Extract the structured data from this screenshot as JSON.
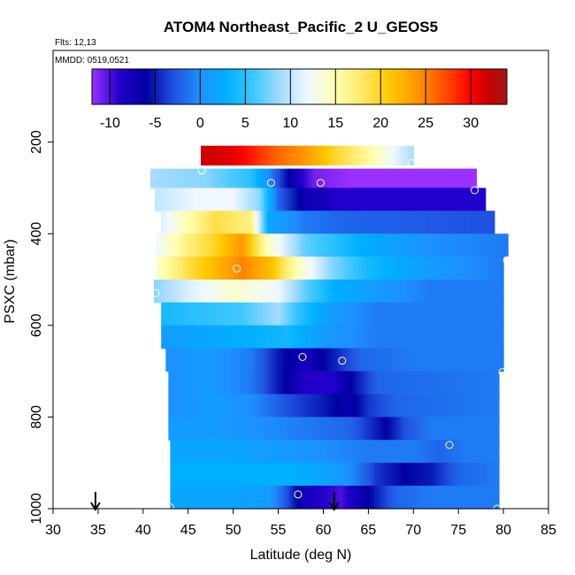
{
  "chart_data": {
    "type": "heatmap",
    "title": "ATOM4 Northeast_Pacific_2 U_GEOS5",
    "notes": [
      "Flts: 12,13",
      "MMDD: 0519,0521"
    ],
    "xlabel": "Latitude (deg N)",
    "ylabel": "PSXC (mbar)",
    "xlim": [
      30,
      85
    ],
    "ylim": [
      1000,
      0
    ],
    "xticks": [
      30,
      35,
      40,
      45,
      50,
      55,
      60,
      65,
      70,
      75,
      80,
      85
    ],
    "yticks": [
      200,
      400,
      600,
      800,
      1000
    ],
    "colorbar": {
      "range": [
        -12,
        34
      ],
      "ticks": [
        -10,
        -5,
        0,
        5,
        10,
        15,
        20,
        25,
        30
      ],
      "stops": [
        [
          -12,
          "#9b30ff"
        ],
        [
          -9,
          "#2200cc"
        ],
        [
          -6,
          "#0000a0"
        ],
        [
          -3,
          "#2050e0"
        ],
        [
          0,
          "#1e90ff"
        ],
        [
          3,
          "#00b0ff"
        ],
        [
          6,
          "#40c8ff"
        ],
        [
          9,
          "#a8dcff"
        ],
        [
          12,
          "#f0f8ff"
        ],
        [
          15,
          "#ffffb0"
        ],
        [
          18,
          "#ffe866"
        ],
        [
          21,
          "#ffc800"
        ],
        [
          24,
          "#ff9800"
        ],
        [
          27,
          "#ff5000"
        ],
        [
          30,
          "#ff0000"
        ],
        [
          32,
          "#c80000"
        ],
        [
          34,
          "#a01818"
        ]
      ]
    },
    "arrows": [
      34.7,
      61.2
    ],
    "bands": [
      {
        "p0": 250,
        "p1": 208,
        "x0": 46.4,
        "x1": 70.0,
        "v": [
          [
            46.4,
            32
          ],
          [
            50,
            31
          ],
          [
            55,
            26
          ],
          [
            58,
            24
          ],
          [
            61,
            20
          ],
          [
            64,
            17
          ],
          [
            67,
            13
          ],
          [
            70,
            9
          ]
        ]
      },
      {
        "p0": 300,
        "p1": 258,
        "x0": 40.8,
        "x1": 77.0,
        "v": [
          [
            40.8,
            9
          ],
          [
            47,
            8
          ],
          [
            52,
            5
          ],
          [
            55,
            -3
          ],
          [
            57,
            -8
          ],
          [
            59,
            -11
          ],
          [
            63,
            -12
          ],
          [
            77,
            -12
          ]
        ]
      },
      {
        "p0": 350,
        "p1": 300,
        "x0": 41.3,
        "x1": 78.0,
        "v": [
          [
            41.3,
            10
          ],
          [
            46,
            12
          ],
          [
            50,
            12
          ],
          [
            53,
            8
          ],
          [
            55,
            -2
          ],
          [
            58,
            -7
          ],
          [
            62,
            -9
          ],
          [
            78,
            -9
          ]
        ]
      },
      {
        "p0": 400,
        "p1": 350,
        "x0": 42.0,
        "x1": 79.0,
        "v": [
          [
            42,
            11
          ],
          [
            45,
            15
          ],
          [
            48,
            19
          ],
          [
            52,
            17
          ],
          [
            54,
            2
          ],
          [
            58,
            -1
          ],
          [
            62,
            -2
          ],
          [
            79,
            -3
          ]
        ]
      },
      {
        "p0": 450,
        "p1": 400,
        "x0": 41.5,
        "x1": 80.5,
        "v": [
          [
            41.5,
            12
          ],
          [
            45,
            17
          ],
          [
            48,
            20
          ],
          [
            51,
            24
          ],
          [
            54,
            14
          ],
          [
            58,
            7
          ],
          [
            64,
            3
          ],
          [
            72,
            0
          ],
          [
            80.5,
            -1
          ]
        ]
      },
      {
        "p0": 500,
        "p1": 450,
        "x0": 41.5,
        "x1": 80.0,
        "v": [
          [
            41.5,
            14
          ],
          [
            45,
            19
          ],
          [
            48,
            22
          ],
          [
            51,
            25
          ],
          [
            54,
            22
          ],
          [
            57,
            15
          ],
          [
            61,
            8
          ],
          [
            65,
            4
          ],
          [
            72,
            1
          ],
          [
            80,
            -1
          ]
        ]
      },
      {
        "p0": 550,
        "p1": 500,
        "x0": 41.2,
        "x1": 80.0,
        "v": [
          [
            41.2,
            8
          ],
          [
            45,
            11
          ],
          [
            50,
            14
          ],
          [
            55,
            12
          ],
          [
            58,
            7
          ],
          [
            61,
            3
          ],
          [
            66,
            1
          ],
          [
            72,
            -1
          ],
          [
            80,
            -1
          ]
        ]
      },
      {
        "p0": 600,
        "p1": 550,
        "x0": 42.0,
        "x1": 80.0,
        "v": [
          [
            42,
            4
          ],
          [
            46,
            5
          ],
          [
            51,
            6
          ],
          [
            55,
            9
          ],
          [
            58,
            4
          ],
          [
            61,
            1
          ],
          [
            66,
            -1
          ],
          [
            80,
            -1
          ]
        ]
      },
      {
        "p0": 650,
        "p1": 600,
        "x0": 42.0,
        "x1": 80.0,
        "v": [
          [
            42,
            1
          ],
          [
            46,
            2
          ],
          [
            52,
            3
          ],
          [
            56,
            4
          ],
          [
            60,
            1
          ],
          [
            66,
            -1
          ],
          [
            80,
            -1
          ]
        ]
      },
      {
        "p0": 700,
        "p1": 650,
        "x0": 42.5,
        "x1": 80.0,
        "v": [
          [
            42.5,
            0
          ],
          [
            47,
            1
          ],
          [
            52,
            -1
          ],
          [
            55,
            -5
          ],
          [
            58,
            -8
          ],
          [
            61,
            -5
          ],
          [
            64,
            -2
          ],
          [
            70,
            -1
          ],
          [
            80,
            -1
          ]
        ]
      },
      {
        "p0": 750,
        "p1": 700,
        "x0": 42.8,
        "x1": 79.5,
        "v": [
          [
            42.8,
            0
          ],
          [
            47,
            1
          ],
          [
            52,
            -1
          ],
          [
            55,
            -5
          ],
          [
            58,
            -9
          ],
          [
            61,
            -9
          ],
          [
            63,
            -6
          ],
          [
            66,
            -2
          ],
          [
            79.5,
            -1
          ]
        ]
      },
      {
        "p0": 800,
        "p1": 750,
        "x0": 42.8,
        "x1": 79.5,
        "v": [
          [
            42.8,
            0
          ],
          [
            48,
            1
          ],
          [
            52,
            0
          ],
          [
            56,
            -3
          ],
          [
            60,
            -5
          ],
          [
            63,
            -7
          ],
          [
            65,
            -4
          ],
          [
            68,
            -2
          ],
          [
            79.5,
            -1
          ]
        ]
      },
      {
        "p0": 850,
        "p1": 800,
        "x0": 42.8,
        "x1": 79.5,
        "v": [
          [
            42.8,
            1
          ],
          [
            48,
            1
          ],
          [
            53,
            0
          ],
          [
            58,
            -1
          ],
          [
            63,
            -2
          ],
          [
            67,
            -6
          ],
          [
            69,
            -3
          ],
          [
            72,
            -1
          ],
          [
            79.5,
            -1
          ]
        ]
      },
      {
        "p0": 900,
        "p1": 850,
        "x0": 43.0,
        "x1": 79.5,
        "v": [
          [
            43,
            2
          ],
          [
            50,
            2
          ],
          [
            55,
            1
          ],
          [
            60,
            0
          ],
          [
            65,
            -1
          ],
          [
            70,
            -1
          ],
          [
            73,
            -2
          ],
          [
            76,
            -1
          ],
          [
            79.5,
            -1
          ]
        ]
      },
      {
        "p0": 950,
        "p1": 900,
        "x0": 43.0,
        "x1": 79.5,
        "v": [
          [
            43,
            3
          ],
          [
            50,
            3
          ],
          [
            56,
            3
          ],
          [
            60,
            2
          ],
          [
            63,
            0
          ],
          [
            66,
            -4
          ],
          [
            69,
            -6
          ],
          [
            72,
            -5
          ],
          [
            75,
            -2
          ],
          [
            79.5,
            -1
          ]
        ]
      },
      {
        "p0": 1000,
        "p1": 950,
        "x0": 43.0,
        "x1": 79.5,
        "v": [
          [
            43,
            2
          ],
          [
            50,
            2
          ],
          [
            54,
            1
          ],
          [
            56,
            -3
          ],
          [
            58,
            -8
          ],
          [
            62,
            -10
          ],
          [
            65,
            -6
          ],
          [
            68,
            -2
          ],
          [
            72,
            -1
          ],
          [
            79.5,
            -1
          ]
        ]
      }
    ],
    "points": [
      [
        46.5,
        262
      ],
      [
        54.2,
        289
      ],
      [
        59.7,
        289
      ],
      [
        76.8,
        305
      ],
      [
        80.4,
        458
      ],
      [
        50.4,
        476
      ],
      [
        41.4,
        530
      ],
      [
        57.7,
        669
      ],
      [
        62.1,
        677
      ],
      [
        79.9,
        702
      ],
      [
        74.0,
        861
      ],
      [
        57.2,
        969
      ],
      [
        43.0,
        997
      ],
      [
        79.3,
        1000
      ],
      [
        69.8,
        246
      ]
    ]
  }
}
